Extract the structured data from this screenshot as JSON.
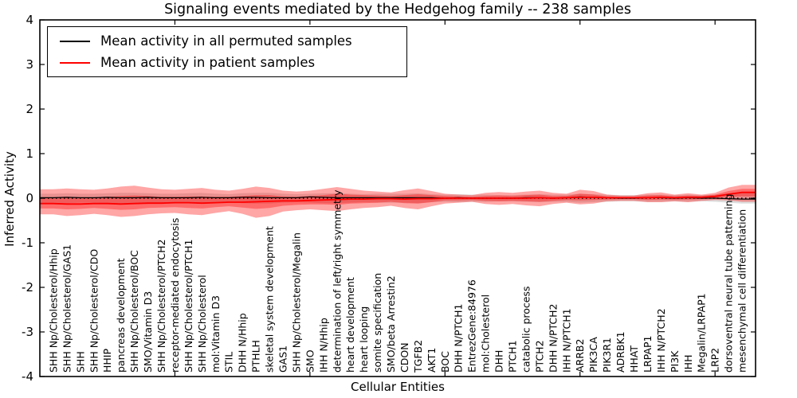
{
  "legend": {
    "entries": [
      {
        "label": "Mean activity in all permuted samples",
        "color": "#000000"
      },
      {
        "label": "Mean activity in patient samples",
        "color": "#ff0000"
      }
    ]
  },
  "chart_data": {
    "type": "line",
    "title": "Signaling events mediated by the Hedgehog family -- 238 samples",
    "samples_count": 238,
    "xlabel": "Cellular Entities",
    "ylabel": "Inferred Activity",
    "ylim": [
      -4,
      4
    ],
    "yticks": [
      -4,
      -3,
      -2,
      -1,
      0,
      1,
      2,
      3,
      4
    ],
    "ytick_labels": [
      "-4",
      "-3",
      "-2",
      "-1",
      "0",
      "1",
      "2",
      "3",
      "4"
    ],
    "xtick_positions": [
      10,
      20,
      30,
      40,
      50
    ],
    "grid": false,
    "legend_position": "upper left",
    "zero_line": {
      "value": 0,
      "style": "dotted",
      "color": "#000000"
    },
    "categories": [
      "SHH Np/Cholesterol/Hhip",
      "SHH Np/Cholesterol/GAS1",
      "SHH",
      "SHH Np/Cholesterol/CDO",
      "HHIP",
      "pancreas development",
      "SHH Np/Cholesterol/BOC",
      "SMO/Vitamin D3",
      "SHH Np/Cholesterol/PTCH2",
      "receptor-mediated endocytosis",
      "SHH Np/Cholesterol/PTCH1",
      "SHH Np/Cholesterol",
      "mol:Vitamin D3",
      "STIL",
      "DHH N/Hhip",
      "PTHLH",
      "skeletal system development",
      "GAS1",
      "SHH Np/Cholesterol/Megalin",
      "SMO",
      "IHH N/Hhip",
      "determination of left/right symmetry",
      "heart development",
      "heart looping",
      "somite specification",
      "SMO/beta Arrestin2",
      "CDON",
      "TGFB2",
      "AKT1",
      "BOC",
      "DHH N/PTCH1",
      "EntrezGene:84976",
      "mol:Cholesterol",
      "DHH",
      "PTCH1",
      "catabolic process",
      "PTCH2",
      "DHH N/PTCH2",
      "IHH N/PTCH1",
      "ARRB2",
      "PIK3CA",
      "PIK3R1",
      "ADRBK1",
      "HHAT",
      "LRPAP1",
      "IHH N/PTCH2",
      "PI3K",
      "IHH",
      "Megalin/LRPAP1",
      "LRP2",
      "dorsoventral neural tube patterning",
      "mesenchymal cell differentiation"
    ],
    "series": [
      {
        "name": "Mean activity in all permuted samples",
        "color": "#000000",
        "values": [
          0.01,
          0.02,
          0.01,
          0.01,
          0.02,
          0.01,
          0.01,
          0.02,
          0.01,
          0.01,
          0.01,
          0.02,
          0.01,
          0.01,
          0.02,
          0.02,
          0.01,
          0.01,
          0.01,
          0.03,
          0.02,
          0.01,
          0.01,
          0.01,
          0.01,
          0.01,
          0.01,
          0.01,
          0.01,
          0.0,
          0.01,
          0.0,
          0.0,
          0.0,
          0.0,
          0.01,
          0.01,
          0.0,
          0.01,
          0.03,
          0.02,
          0.01,
          0.0,
          0.0,
          0.01,
          0.01,
          0.0,
          0.01,
          0.0,
          0.0,
          -0.01,
          -0.02
        ]
      },
      {
        "name": "Mean activity in patient samples",
        "color": "#ff0000",
        "values": [
          -0.12,
          -0.13,
          -0.13,
          -0.12,
          -0.12,
          -0.13,
          -0.12,
          -0.11,
          -0.11,
          -0.1,
          -0.1,
          -0.11,
          -0.1,
          -0.09,
          -0.09,
          -0.08,
          -0.07,
          -0.06,
          -0.06,
          -0.05,
          -0.04,
          -0.03,
          -0.02,
          -0.02,
          -0.01,
          -0.01,
          -0.02,
          -0.01,
          -0.01,
          0.0,
          0.0,
          0.0,
          0.0,
          0.0,
          0.0,
          0.0,
          0.01,
          0.0,
          0.01,
          0.02,
          0.02,
          0.01,
          0.01,
          0.01,
          0.01,
          0.02,
          0.01,
          0.02,
          0.02,
          0.04,
          0.09,
          0.13
        ]
      }
    ],
    "bands": [
      {
        "name": "permuted-range",
        "color": "#aaaaaa",
        "opacity": 0.4,
        "upper": [
          0.1,
          0.11,
          0.1,
          0.1,
          0.11,
          0.12,
          0.12,
          0.11,
          0.1,
          0.1,
          0.11,
          0.12,
          0.1,
          0.09,
          0.11,
          0.12,
          0.12,
          0.1,
          0.09,
          0.1,
          0.11,
          0.11,
          0.1,
          0.09,
          0.1,
          0.1,
          0.1,
          0.11,
          0.09,
          0.08,
          0.09,
          0.08,
          0.08,
          0.07,
          0.07,
          0.08,
          0.09,
          0.08,
          0.08,
          0.1,
          0.09,
          0.08,
          0.07,
          0.07,
          0.08,
          0.08,
          0.07,
          0.08,
          0.07,
          0.08,
          0.1,
          0.12
        ],
        "lower": [
          -0.1,
          -0.11,
          -0.1,
          -0.1,
          -0.11,
          -0.12,
          -0.12,
          -0.11,
          -0.1,
          -0.1,
          -0.11,
          -0.12,
          -0.1,
          -0.09,
          -0.11,
          -0.12,
          -0.12,
          -0.1,
          -0.09,
          -0.1,
          -0.11,
          -0.11,
          -0.1,
          -0.09,
          -0.1,
          -0.1,
          -0.1,
          -0.11,
          -0.09,
          -0.08,
          -0.09,
          -0.08,
          -0.08,
          -0.07,
          -0.07,
          -0.08,
          -0.09,
          -0.08,
          -0.08,
          -0.1,
          -0.09,
          -0.08,
          -0.07,
          -0.07,
          -0.08,
          -0.08,
          -0.07,
          -0.08,
          -0.07,
          -0.08,
          -0.1,
          -0.12
        ]
      },
      {
        "name": "patient-outer-range",
        "color": "#ff0000",
        "opacity": 0.35,
        "upper": [
          0.2,
          0.22,
          0.2,
          0.19,
          0.22,
          0.26,
          0.28,
          0.24,
          0.2,
          0.19,
          0.21,
          0.23,
          0.19,
          0.17,
          0.21,
          0.26,
          0.23,
          0.17,
          0.15,
          0.17,
          0.21,
          0.25,
          0.21,
          0.17,
          0.15,
          0.13,
          0.18,
          0.22,
          0.16,
          0.1,
          0.08,
          0.07,
          0.12,
          0.14,
          0.12,
          0.15,
          0.17,
          0.12,
          0.1,
          0.19,
          0.16,
          0.08,
          0.06,
          0.06,
          0.11,
          0.13,
          0.08,
          0.11,
          0.08,
          0.12,
          0.24,
          0.3
        ],
        "lower": [
          -0.36,
          -0.4,
          -0.38,
          -0.35,
          -0.38,
          -0.42,
          -0.4,
          -0.36,
          -0.34,
          -0.33,
          -0.36,
          -0.38,
          -0.33,
          -0.29,
          -0.35,
          -0.44,
          -0.4,
          -0.3,
          -0.27,
          -0.25,
          -0.27,
          -0.29,
          -0.25,
          -0.22,
          -0.2,
          -0.17,
          -0.22,
          -0.25,
          -0.18,
          -0.12,
          -0.1,
          -0.08,
          -0.13,
          -0.15,
          -0.13,
          -0.16,
          -0.18,
          -0.13,
          -0.1,
          -0.14,
          -0.12,
          -0.07,
          -0.06,
          -0.06,
          -0.09,
          -0.09,
          -0.07,
          -0.09,
          -0.06,
          -0.04,
          -0.05,
          -0.08
        ]
      },
      {
        "name": "patient-inner-range",
        "color": "#ff0000",
        "opacity": 0.35,
        "upper": [
          0.02,
          0.03,
          0.02,
          0.02,
          0.03,
          0.05,
          0.06,
          0.05,
          0.03,
          0.03,
          0.04,
          0.04,
          0.03,
          0.03,
          0.05,
          0.07,
          0.07,
          0.04,
          0.03,
          0.05,
          0.07,
          0.1,
          0.08,
          0.07,
          0.06,
          0.05,
          0.07,
          0.09,
          0.07,
          0.05,
          0.04,
          0.03,
          0.05,
          0.06,
          0.05,
          0.07,
          0.08,
          0.05,
          0.05,
          0.1,
          0.08,
          0.04,
          0.03,
          0.03,
          0.06,
          0.07,
          0.04,
          0.06,
          0.05,
          0.08,
          0.16,
          0.21
        ],
        "lower": [
          -0.23,
          -0.25,
          -0.24,
          -0.22,
          -0.24,
          -0.26,
          -0.25,
          -0.22,
          -0.21,
          -0.2,
          -0.22,
          -0.23,
          -0.2,
          -0.18,
          -0.21,
          -0.24,
          -0.22,
          -0.17,
          -0.15,
          -0.14,
          -0.14,
          -0.15,
          -0.12,
          -0.11,
          -0.1,
          -0.08,
          -0.11,
          -0.12,
          -0.09,
          -0.05,
          -0.05,
          -0.04,
          -0.06,
          -0.07,
          -0.06,
          -0.07,
          -0.08,
          -0.06,
          -0.04,
          -0.05,
          -0.04,
          -0.03,
          -0.02,
          -0.02,
          -0.04,
          -0.03,
          -0.03,
          -0.03,
          -0.02,
          0.0,
          0.03,
          0.04
        ]
      }
    ]
  }
}
